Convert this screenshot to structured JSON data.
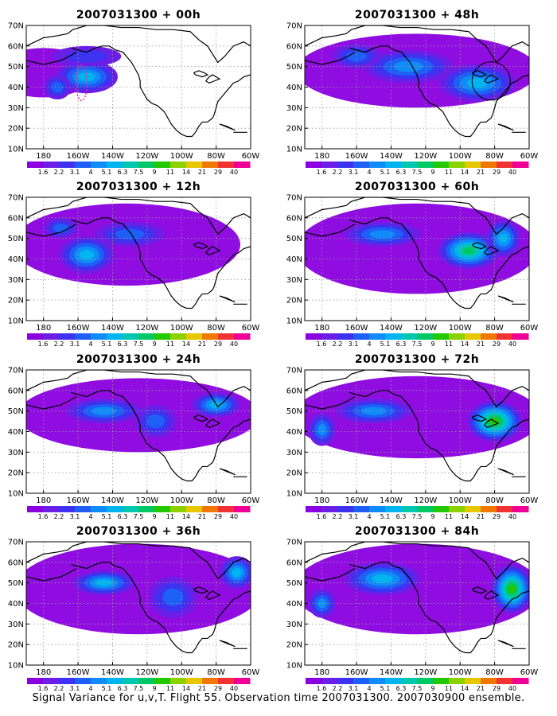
{
  "caption": "Signal Variance for u,v,T. Flight 55. Observation time 2007031300. 2007030900 ensemble.",
  "panel_titles": [
    "2007031300 + 00h",
    "2007031300 + 48h",
    "2007031300 + 12h",
    "2007031300 + 60h",
    "2007031300 + 24h",
    "2007031300 + 72h",
    "2007031300 + 36h",
    "2007031300 + 84h"
  ],
  "lat_labels": [
    "70N",
    "60N",
    "50N",
    "40N",
    "30N",
    "20N",
    "10N"
  ],
  "lon_labels": [
    "180",
    "160W",
    "140W",
    "120W",
    "100W",
    "80W",
    "60W"
  ],
  "colorbar": {
    "labels": [
      "1.6",
      "2.2",
      "3.1",
      "4",
      "5.1",
      "6.3",
      "7.5",
      "9",
      "11",
      "14",
      "21",
      "29",
      "40"
    ],
    "colors": [
      "#8a00e0",
      "#6a1ee6",
      "#3c32f0",
      "#1e5ff5",
      "#0f8cf8",
      "#00b4f0",
      "#00c8b0",
      "#00c864",
      "#22c800",
      "#8cd200",
      "#e6c800",
      "#f07800",
      "#f03232",
      "#f00096"
    ]
  },
  "map_extent": {
    "lon": [
      170,
      300
    ],
    "lat": [
      10,
      70
    ]
  },
  "marks": {
    "marker_00h": "magenta dotted contour",
    "marker_48h": "circle near Great Lakes"
  },
  "colors": {
    "coast": "#000000",
    "grid": "#9a9a9a"
  }
}
